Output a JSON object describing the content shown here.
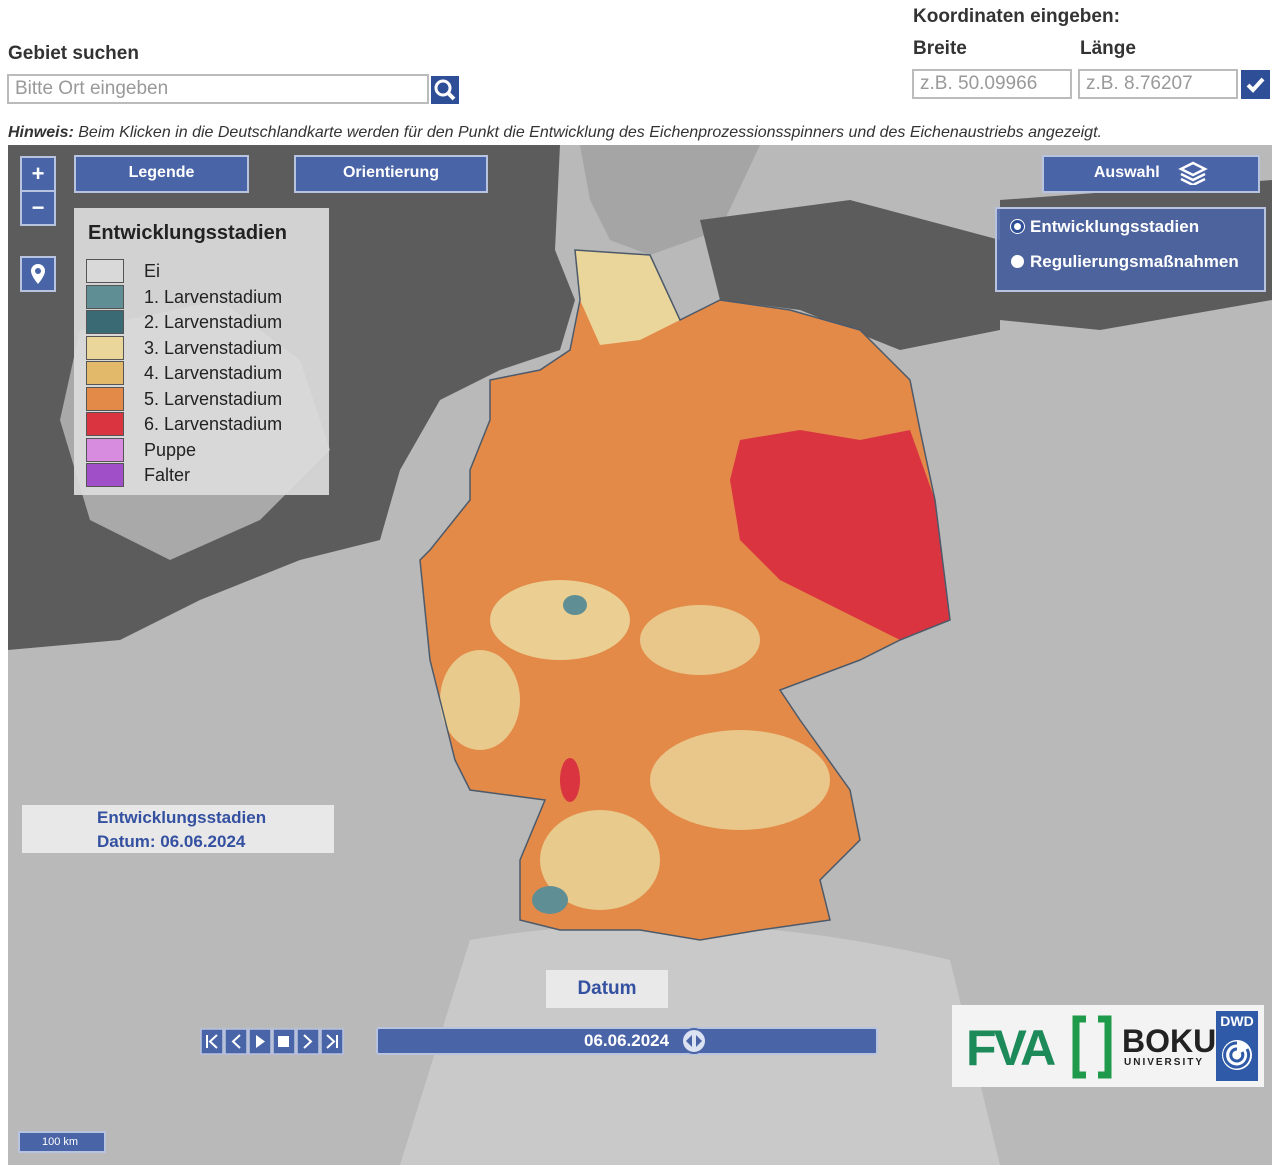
{
  "search": {
    "label": "Gebiet suchen",
    "placeholder": "Bitte Ort eingeben"
  },
  "coordinates": {
    "title": "Koordinaten eingeben:",
    "lat_label": "Breite",
    "lat_placeholder": "z.B. 50.09966",
    "lon_label": "Länge",
    "lon_placeholder": "z.B. 8.76207"
  },
  "hint": {
    "label": "Hinweis:",
    "text": "Beim Klicken in die Deutschlandkarte werden für den Punkt die Entwicklung des Eichenprozessionsspinners und des Eichenaustriebs angezeigt."
  },
  "controls": {
    "zoom_in": "+",
    "zoom_out": "−",
    "legend_button": "Legende",
    "orientation_button": "Orientierung",
    "selection_button": "Auswahl"
  },
  "legend": {
    "title": "Entwicklungsstadien",
    "items": [
      {
        "name": "Ei",
        "color": "#d9d9d9"
      },
      {
        "name": "1. Larvenstadium",
        "color": "#5f8f94"
      },
      {
        "name": "2. Larvenstadium",
        "color": "#3a6b74"
      },
      {
        "name": "3. Larvenstadium",
        "color": "#ead59a"
      },
      {
        "name": "4. Larvenstadium",
        "color": "#e2b86a"
      },
      {
        "name": "5. Larvenstadium",
        "color": "#e38a48"
      },
      {
        "name": "6. Larvenstadium",
        "color": "#d9343f"
      },
      {
        "name": "Puppe",
        "color": "#d88ce0"
      },
      {
        "name": "Falter",
        "color": "#a04fc9"
      }
    ]
  },
  "layers": [
    "Entwicklungsstadien",
    "Regulierungsmaßnahmen"
  ],
  "info": {
    "title": "Entwicklungsstadien",
    "date": "Datum: 06.06.2024"
  },
  "timeline": {
    "label": "Datum",
    "value": "06.06.2024"
  },
  "logos": {
    "fva": "FVA",
    "boku": "BOKU",
    "boku_sub": "UNIVERSITY",
    "dwd": "DWD"
  },
  "scale": "100 km"
}
